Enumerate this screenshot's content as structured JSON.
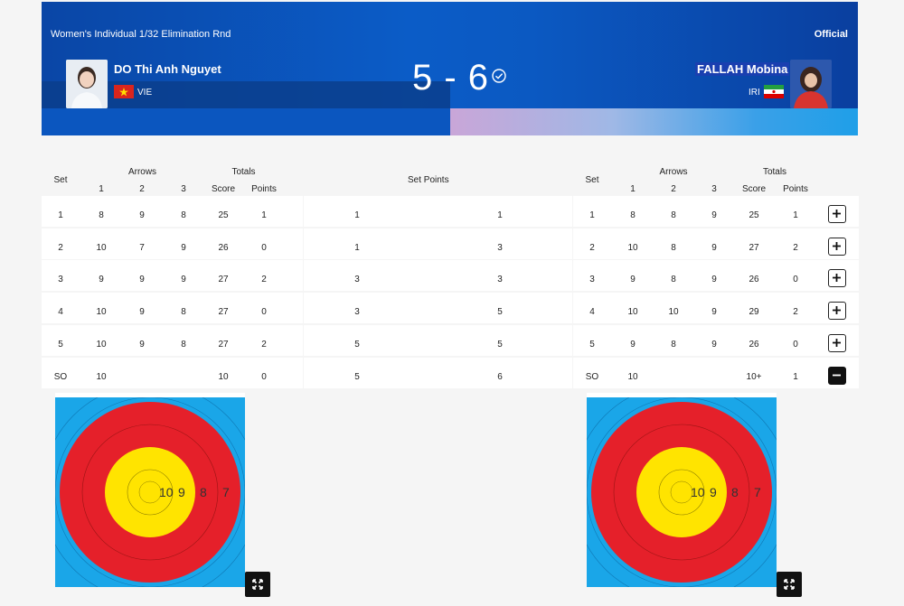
{
  "header": {
    "event": "Women's Individual 1/32 Elimination Rnd",
    "status": "Official",
    "score": "5 - 6",
    "left_athlete": {
      "name": "DO Thi Anh Nguyet",
      "noc": "VIE"
    },
    "right_athlete": {
      "name": "FALLAH Mobina",
      "noc": "IRI"
    }
  },
  "table_headers": {
    "set": "Set",
    "arrows": "Arrows",
    "totals": "Totals",
    "a1": "1",
    "a2": "2",
    "a3": "3",
    "score": "Score",
    "points": "Points",
    "set_points": "Set Points"
  },
  "left_rows": [
    {
      "set": "1",
      "a1": "8",
      "a2": "9",
      "a3": "8",
      "score": "25",
      "points": "1",
      "setpts": "1"
    },
    {
      "set": "2",
      "a1": "10",
      "a2": "7",
      "a3": "9",
      "score": "26",
      "points": "0",
      "setpts": "1"
    },
    {
      "set": "3",
      "a1": "9",
      "a2": "9",
      "a3": "9",
      "score": "27",
      "points": "2",
      "setpts": "3"
    },
    {
      "set": "4",
      "a1": "10",
      "a2": "9",
      "a3": "8",
      "score": "27",
      "points": "0",
      "setpts": "3"
    },
    {
      "set": "5",
      "a1": "10",
      "a2": "9",
      "a3": "8",
      "score": "27",
      "points": "2",
      "setpts": "5"
    },
    {
      "set": "SO",
      "a1": "10",
      "a2": "",
      "a3": "",
      "score": "10",
      "points": "0",
      "setpts": "5"
    }
  ],
  "right_rows": [
    {
      "set": "1",
      "a1": "8",
      "a2": "8",
      "a3": "9",
      "score": "25",
      "points": "1",
      "setpts": "1"
    },
    {
      "set": "2",
      "a1": "10",
      "a2": "8",
      "a3": "9",
      "score": "27",
      "points": "2",
      "setpts": "3"
    },
    {
      "set": "3",
      "a1": "9",
      "a2": "8",
      "a3": "9",
      "score": "26",
      "points": "0",
      "setpts": "3"
    },
    {
      "set": "4",
      "a1": "10",
      "a2": "10",
      "a3": "9",
      "score": "29",
      "points": "2",
      "setpts": "5"
    },
    {
      "set": "5",
      "a1": "9",
      "a2": "8",
      "a3": "9",
      "score": "26",
      "points": "0",
      "setpts": "5"
    },
    {
      "set": "SO",
      "a1": "10",
      "a2": "",
      "a3": "",
      "score": "10+",
      "points": "1",
      "setpts": "6"
    }
  ],
  "target_labels": [
    "10",
    "9",
    "8",
    "7"
  ],
  "colors": {
    "gold": "#ffe400",
    "red": "#e5202a",
    "blue": "#1aa6e8",
    "header": "#0b5cc7"
  }
}
